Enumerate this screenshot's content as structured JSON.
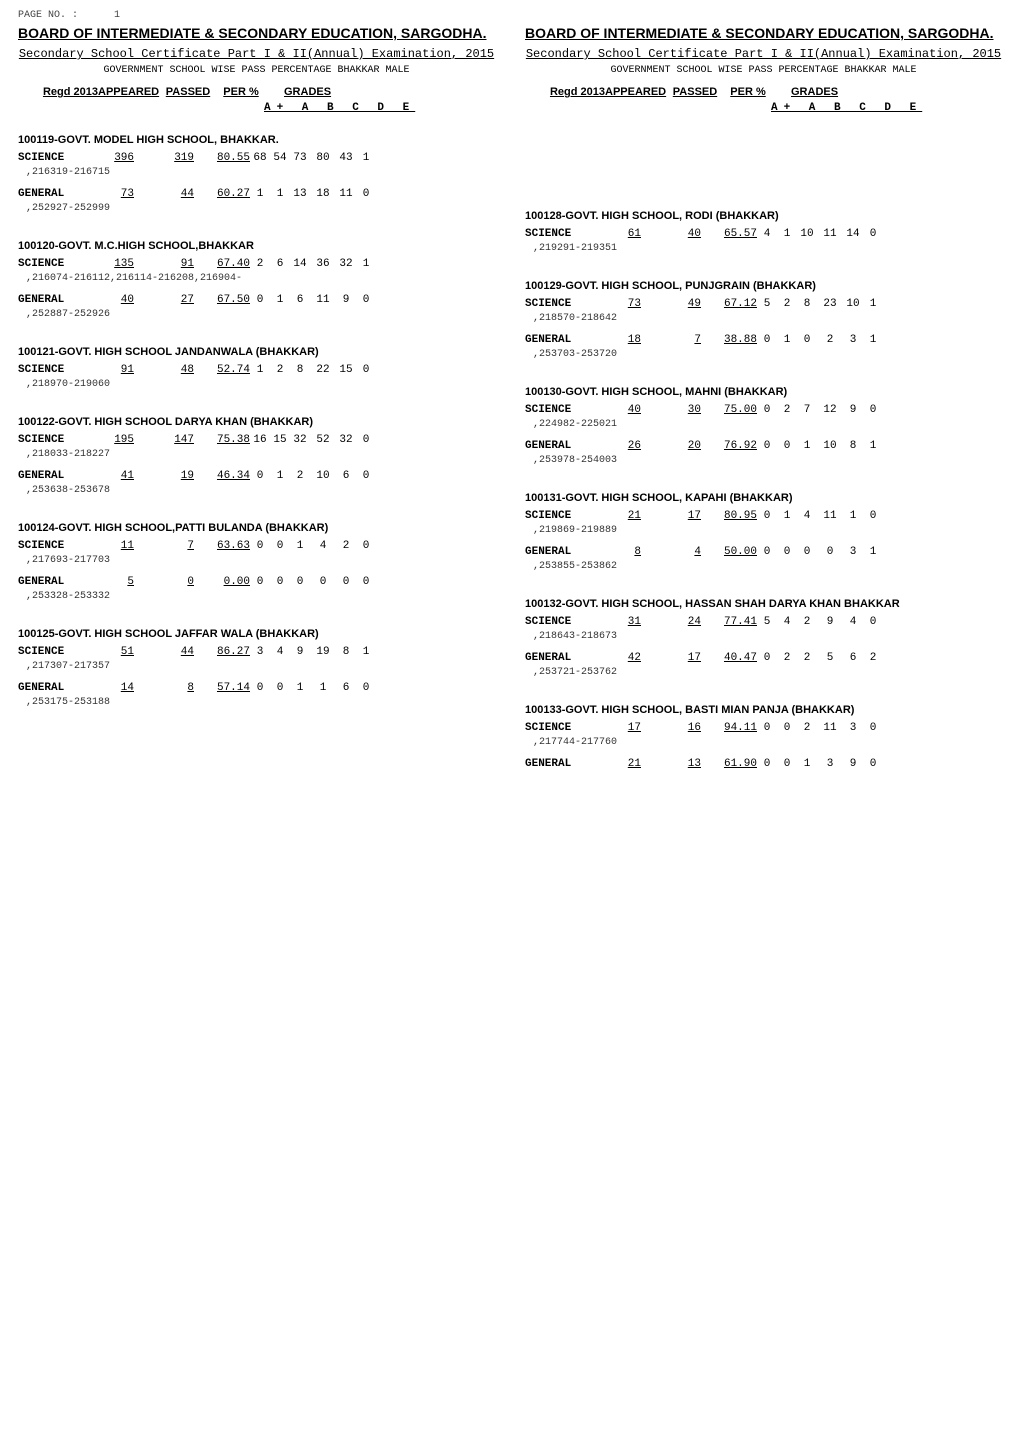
{
  "page_no_label": "PAGE NO. :",
  "page_no": "1",
  "board_title": "BOARD OF INTERMEDIATE & SECONDARY EDUCATION, SARGODHA.",
  "exam_title": "Secondary School Certificate Part I & II(Annual) Examination, 2015",
  "sub_title": "GOVERNMENT SCHOOL WISE PASS PERCENTAGE  BHAKKAR MALE",
  "headers": {
    "regd": "Regd 2013",
    "appeared": "APPEARED",
    "passed": "PASSED",
    "per": "PER %",
    "grades": "GRADES",
    "grade_cols": "A+ A B C  D E"
  },
  "left_schools": [
    {
      "name": "100119-GOVT. MODEL HIGH SCHOOL, BHAKKAR.",
      "rows": [
        {
          "label": "SCIENCE",
          "appeared": "396",
          "passed": "319",
          "per": "80.55",
          "g": [
            "68",
            "54",
            "73",
            "80",
            "43",
            "1"
          ],
          "range": ",216319-216715"
        },
        {
          "label": "GENERAL",
          "appeared": "73",
          "passed": "44",
          "per": "60.27",
          "g": [
            "1",
            "1",
            "13",
            "18",
            "11",
            "0"
          ],
          "range": ",252927-252999"
        }
      ]
    },
    {
      "name": "100120-GOVT. M.C.HIGH SCHOOL,BHAKKAR",
      "rows": [
        {
          "label": "SCIENCE",
          "appeared": "135",
          "passed": "91",
          "per": "67.40",
          "g": [
            "2",
            "6",
            "14",
            "36",
            "32",
            "1"
          ],
          "range": ",216074-216112,216114-216208,216904-"
        },
        {
          "label": "GENERAL",
          "appeared": "40",
          "passed": "27",
          "per": "67.50",
          "g": [
            "0",
            "1",
            "6",
            "11",
            "9",
            "0"
          ],
          "range": ",252887-252926"
        }
      ]
    },
    {
      "name": "100121-GOVT. HIGH SCHOOL JANDANWALA (BHAKKAR)",
      "rows": [
        {
          "label": "SCIENCE",
          "appeared": "91",
          "passed": "48",
          "per": "52.74",
          "g": [
            "1",
            "2",
            "8",
            "22",
            "15",
            "0"
          ],
          "range": ",218970-219060"
        }
      ]
    },
    {
      "name": "100122-GOVT. HIGH SCHOOL DARYA KHAN (BHAKKAR)",
      "rows": [
        {
          "label": "SCIENCE",
          "appeared": "195",
          "passed": "147",
          "per": "75.38",
          "g": [
            "16",
            "15",
            "32",
            "52",
            "32",
            "0"
          ],
          "range": ",218033-218227"
        },
        {
          "label": "GENERAL",
          "appeared": "41",
          "passed": "19",
          "per": "46.34",
          "g": [
            "0",
            "1",
            "2",
            "10",
            "6",
            "0"
          ],
          "range": ",253638-253678"
        }
      ]
    },
    {
      "name": "100124-GOVT. HIGH SCHOOL,PATTI BULANDA (BHAKKAR)",
      "rows": [
        {
          "label": "SCIENCE",
          "appeared": "11",
          "passed": "7",
          "per": "63.63",
          "g": [
            "0",
            "0",
            "1",
            "4",
            "2",
            "0"
          ],
          "range": ",217693-217703"
        },
        {
          "label": "GENERAL",
          "appeared": "5",
          "passed": "0",
          "per": "0.00",
          "g": [
            "0",
            "0",
            "0",
            "0",
            "0",
            "0"
          ],
          "range": ",253328-253332"
        }
      ]
    },
    {
      "name": "100125-GOVT. HIGH SCHOOL JAFFAR WALA (BHAKKAR)",
      "rows": [
        {
          "label": "SCIENCE",
          "appeared": "51",
          "passed": "44",
          "per": "86.27",
          "g": [
            "3",
            "4",
            "9",
            "19",
            "8",
            "1"
          ],
          "range": ",217307-217357"
        },
        {
          "label": "GENERAL",
          "appeared": "14",
          "passed": "8",
          "per": "57.14",
          "g": [
            "0",
            "0",
            "1",
            "1",
            "6",
            "0"
          ],
          "range": ",253175-253188"
        }
      ]
    }
  ],
  "right_schools": [
    {
      "name": "100128-GOVT. HIGH SCHOOL, RODI (BHAKKAR)",
      "rows": [
        {
          "label": "SCIENCE",
          "appeared": "61",
          "passed": "40",
          "per": "65.57",
          "g": [
            "4",
            "1",
            "10",
            "11",
            "14",
            "0"
          ],
          "range": ",219291-219351"
        }
      ]
    },
    {
      "name": "100129-GOVT. HIGH SCHOOL, PUNJGRAIN (BHAKKAR)",
      "rows": [
        {
          "label": "SCIENCE",
          "appeared": "73",
          "passed": "49",
          "per": "67.12",
          "g": [
            "5",
            "2",
            "8",
            "23",
            "10",
            "1"
          ],
          "range": ",218570-218642"
        },
        {
          "label": "GENERAL",
          "appeared": "18",
          "passed": "7",
          "per": "38.88",
          "g": [
            "0",
            "1",
            "0",
            "2",
            "3",
            "1"
          ],
          "range": ",253703-253720"
        }
      ]
    },
    {
      "name": "100130-GOVT. HIGH SCHOOL, MAHNI (BHAKKAR)",
      "rows": [
        {
          "label": "SCIENCE",
          "appeared": "40",
          "passed": "30",
          "per": "75.00",
          "g": [
            "0",
            "2",
            "7",
            "12",
            "9",
            "0"
          ],
          "range": ",224982-225021"
        },
        {
          "label": "GENERAL",
          "appeared": "26",
          "passed": "20",
          "per": "76.92",
          "g": [
            "0",
            "0",
            "1",
            "10",
            "8",
            "1"
          ],
          "range": ",253978-254003"
        }
      ]
    },
    {
      "name": "100131-GOVT. HIGH SCHOOL, KAPAHI (BHAKKAR)",
      "rows": [
        {
          "label": "SCIENCE",
          "appeared": "21",
          "passed": "17",
          "per": "80.95",
          "g": [
            "0",
            "1",
            "4",
            "11",
            "1",
            "0"
          ],
          "range": ",219869-219889"
        },
        {
          "label": "GENERAL",
          "appeared": "8",
          "passed": "4",
          "per": "50.00",
          "g": [
            "0",
            "0",
            "0",
            "0",
            "3",
            "1"
          ],
          "range": ",253855-253862"
        }
      ]
    },
    {
      "name": "100132-GOVT. HIGH SCHOOL, HASSAN SHAH DARYA KHAN BHAKKAR",
      "rows": [
        {
          "label": "SCIENCE",
          "appeared": "31",
          "passed": "24",
          "per": "77.41",
          "g": [
            "5",
            "4",
            "2",
            "9",
            "4",
            "0"
          ],
          "range": ",218643-218673"
        },
        {
          "label": "GENERAL",
          "appeared": "42",
          "passed": "17",
          "per": "40.47",
          "g": [
            "0",
            "2",
            "2",
            "5",
            "6",
            "2"
          ],
          "range": ",253721-253762"
        }
      ]
    },
    {
      "name": "100133-GOVT. HIGH SCHOOL, BASTI MIAN PANJA (BHAKKAR)",
      "rows": [
        {
          "label": "SCIENCE",
          "appeared": "17",
          "passed": "16",
          "per": "94.11",
          "g": [
            "0",
            "0",
            "2",
            "11",
            "3",
            "0"
          ],
          "range": ",217744-217760"
        },
        {
          "label": "GENERAL",
          "appeared": "21",
          "passed": "13",
          "per": "61.90",
          "g": [
            "0",
            "0",
            "1",
            "3",
            "9",
            "0"
          ],
          "range": ""
        }
      ]
    }
  ]
}
